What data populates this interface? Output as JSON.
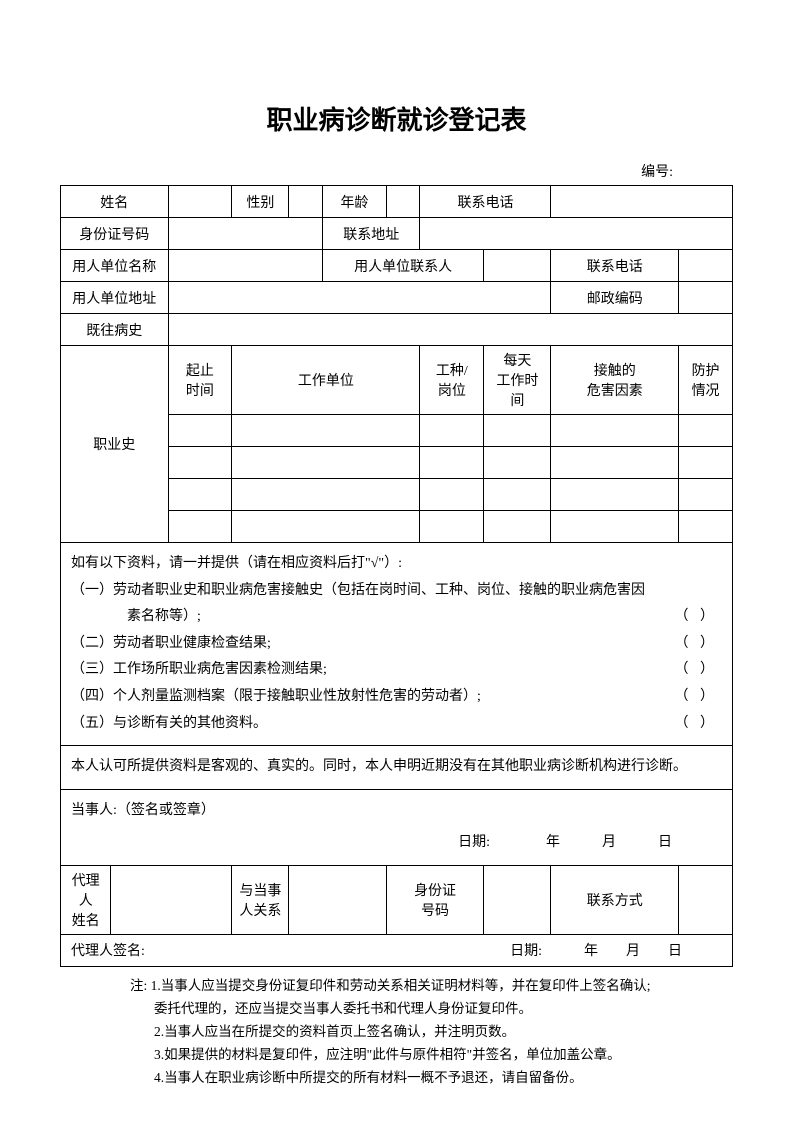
{
  "title": "职业病诊断就诊登记表",
  "serial_label": "编号:",
  "row1": {
    "name": "姓名",
    "gender": "性别",
    "age": "年龄",
    "phone": "联系电话"
  },
  "row2": {
    "id_no": "身份证号码",
    "address": "联系地址"
  },
  "row3": {
    "employer": "用人单位名称",
    "contact": "用人单位联系人",
    "phone": "联系电话"
  },
  "row4": {
    "emp_addr": "用人单位地址",
    "postcode": "邮政编码"
  },
  "row5": {
    "history": "既往病史"
  },
  "occ_label": "职业史",
  "occ_headers": {
    "period": "起止\n时间",
    "workplace": "工作单位",
    "job": "工种/\n岗位",
    "hours": "每天\n工作时间",
    "hazard": "接触的\n危害因素",
    "protection": "防护\n情况"
  },
  "materials": {
    "intro": "如有以下资料，请一并提供（请在相应资料后打\"√\"）:",
    "item1a": "（一）劳动者职业史和职业病危害接触史（包括在岗时间、工种、岗位、接触的职业病危害因",
    "item1b": "素名称等）;",
    "item2": "（二）劳动者职业健康检查结果;",
    "item3": "（三）工作场所职业病危害因素检测结果;",
    "item4": "（四）个人剂量监测档案（限于接触职业性放射性危害的劳动者）;",
    "item5": "（五）与诊断有关的其他资料。",
    "paren": "（ ）"
  },
  "declare": "本人认可所提供资料是客观的、真实的。同时，本人申明近期没有在其他职业病诊断机构进行诊断。",
  "sign": {
    "party": "当事人:（签名或签章）",
    "date_line": "日期:　　　　年　　　月　　　日"
  },
  "agent": {
    "name": "代理人\n姓名",
    "relation": "与当事\n人关系",
    "id": "身份证\n号码",
    "contact": "联系方式",
    "sign": "代理人签名:",
    "date_line": "日期:　　　年　　月　　日"
  },
  "notes": {
    "prefix": "注:",
    "n1": "1.当事人应当提交身份证复印件和劳动关系相关证明材料等，并在复印件上签名确认;",
    "n1b": "委托代理的，还应当提交当事人委托书和代理人身份证复印件。",
    "n2": "2.当事人应当在所提交的资料首页上签名确认，并注明页数。",
    "n3": "3.如果提供的材料是复印件，应注明\"此件与原件相符\"并签名，单位加盖公章。",
    "n4": "4.当事人在职业病诊断中所提交的所有材料一概不予退还，请自留备份。"
  }
}
